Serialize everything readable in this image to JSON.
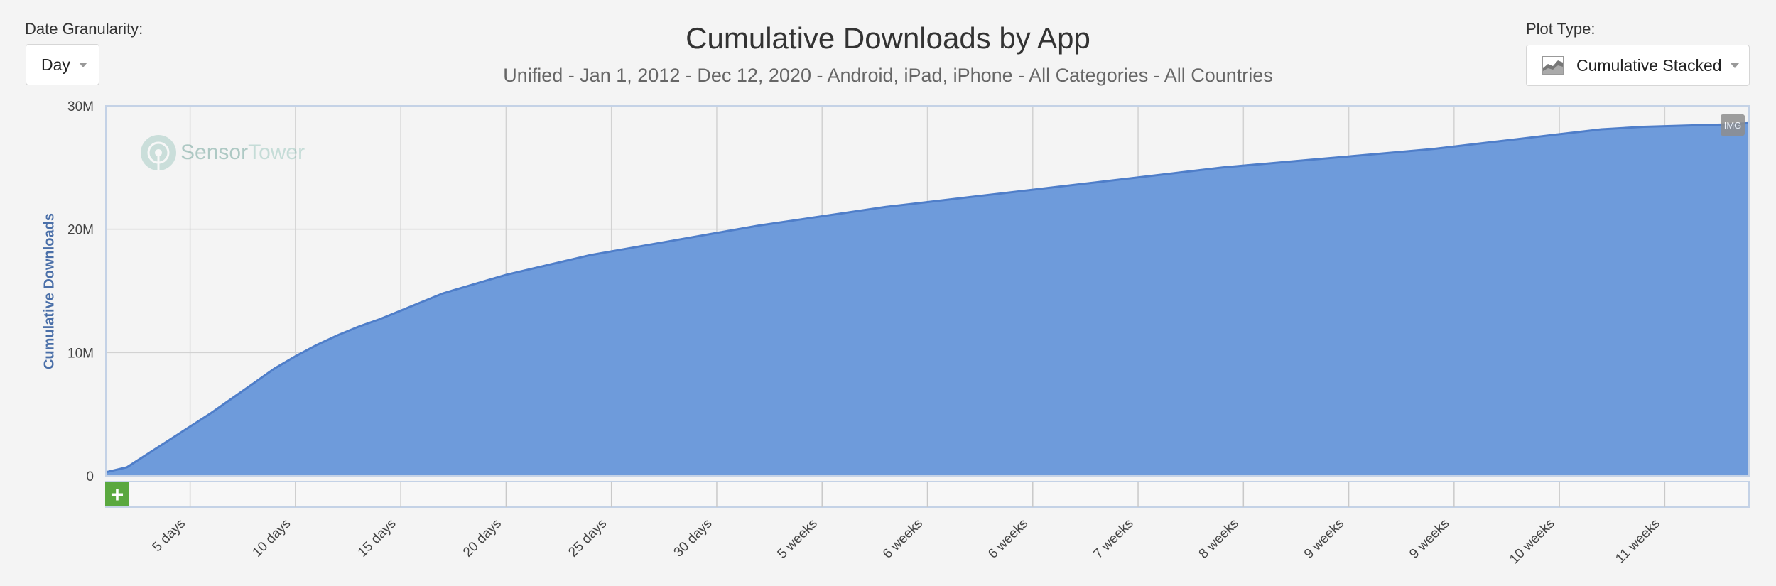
{
  "controls": {
    "granularity_label": "Date Granularity:",
    "granularity_value": "Day",
    "plot_type_label": "Plot Type:",
    "plot_type_value": "Cumulative Stacked",
    "img_label": "IMG",
    "add_label": "+"
  },
  "watermark": {
    "brand_dark": "Sensor",
    "brand_light": "Tower"
  },
  "colors": {
    "area_fill": "#6e9bdb",
    "area_line": "#4f7ec9",
    "grid": "#d2d2d2",
    "axis": "#c4d2e6",
    "ylabel": "#4a6fa8"
  },
  "chart_data": {
    "type": "area",
    "title": "Cumulative Downloads by App",
    "subtitle": "Unified - Jan 1, 2012 - Dec 12, 2020 - Android, iPad, iPhone - All Categories - All Countries",
    "ylabel": "Cumulative Downloads",
    "xlabel": "",
    "ylim": [
      0,
      30000000
    ],
    "xlim": [
      1,
      79
    ],
    "y_ticks": [
      {
        "value": 0,
        "label": "0"
      },
      {
        "value": 10000000,
        "label": "10M"
      },
      {
        "value": 20000000,
        "label": "20M"
      },
      {
        "value": 30000000,
        "label": "30M"
      }
    ],
    "x_ticks": [
      {
        "day": 5,
        "label": "5 days"
      },
      {
        "day": 10,
        "label": "10 days"
      },
      {
        "day": 15,
        "label": "15 days"
      },
      {
        "day": 20,
        "label": "20 days"
      },
      {
        "day": 25,
        "label": "25 days"
      },
      {
        "day": 30,
        "label": "30 days"
      },
      {
        "day": 35,
        "label": "5 weeks"
      },
      {
        "day": 40,
        "label": "6 weeks"
      },
      {
        "day": 45,
        "label": "6 weeks"
      },
      {
        "day": 50,
        "label": "7 weeks"
      },
      {
        "day": 55,
        "label": "8 weeks"
      },
      {
        "day": 60,
        "label": "9 weeks"
      },
      {
        "day": 65,
        "label": "9 weeks"
      },
      {
        "day": 70,
        "label": "10 weeks"
      },
      {
        "day": 75,
        "label": "11 weeks"
      }
    ],
    "grid": true,
    "legend": "none",
    "series": [
      {
        "x": [
          1,
          2,
          3,
          4,
          5,
          6,
          7,
          8,
          9,
          10,
          11,
          12,
          13,
          14,
          15,
          16,
          17,
          18,
          19,
          20,
          22,
          24,
          26,
          28,
          30,
          32,
          34,
          36,
          38,
          40,
          42,
          44,
          46,
          48,
          50,
          52,
          54,
          56,
          58,
          60,
          62,
          64,
          66,
          68,
          70,
          72,
          74,
          76,
          78,
          79
        ],
        "y": [
          300000,
          700000,
          1800000,
          2900000,
          4000000,
          5100000,
          6300000,
          7500000,
          8700000,
          9700000,
          10600000,
          11400000,
          12100000,
          12700000,
          13400000,
          14100000,
          14800000,
          15300000,
          15800000,
          16300000,
          17100000,
          17900000,
          18500000,
          19100000,
          19700000,
          20300000,
          20800000,
          21300000,
          21800000,
          22200000,
          22600000,
          23000000,
          23400000,
          23800000,
          24200000,
          24600000,
          25000000,
          25300000,
          25600000,
          25900000,
          26200000,
          26500000,
          26900000,
          27300000,
          27700000,
          28100000,
          28300000,
          28400000,
          28500000,
          28600000
        ]
      }
    ]
  }
}
